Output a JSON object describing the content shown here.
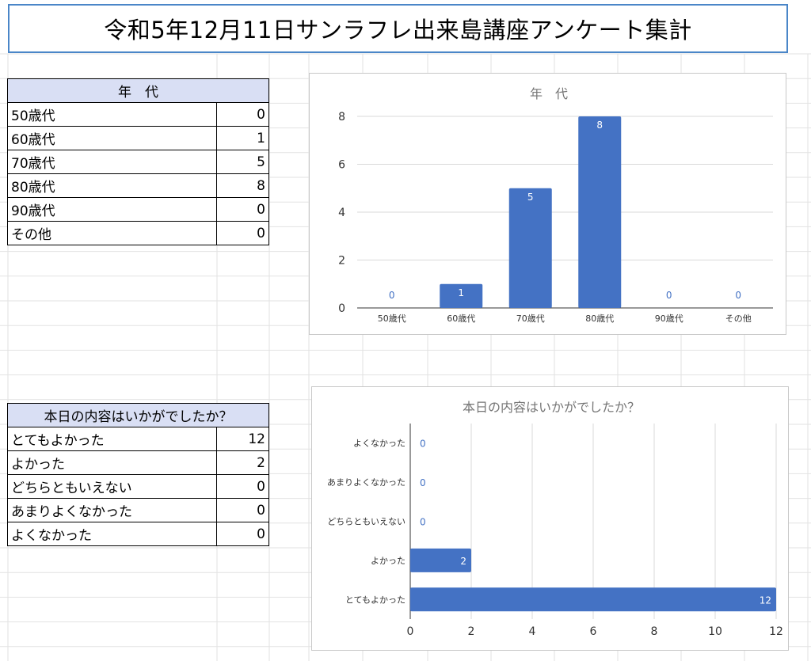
{
  "title": "令和5年12月11日サンラフレ出来島講座アンケート集計",
  "age_table": {
    "header": "年　代",
    "rows": [
      {
        "label": "50歳代",
        "value": "0"
      },
      {
        "label": "60歳代",
        "value": "1"
      },
      {
        "label": "70歳代",
        "value": "5"
      },
      {
        "label": "80歳代",
        "value": "8"
      },
      {
        "label": "90歳代",
        "value": "0"
      },
      {
        "label": "その他",
        "value": "0"
      }
    ]
  },
  "satisfaction_table": {
    "header": "本日の内容はいかがでしたか？",
    "rows": [
      {
        "label": "とてもよかった",
        "value": "12"
      },
      {
        "label": "よかった",
        "value": "2"
      },
      {
        "label": "どちらともいえない",
        "value": "0"
      },
      {
        "label": "あまりよくなかった",
        "value": "0"
      },
      {
        "label": "よくなかった",
        "value": "0"
      }
    ]
  },
  "colors": {
    "bar": "#4472c4",
    "title_border": "#4a86c8",
    "header_fill": "#d9dff4"
  },
  "chart_data": [
    {
      "type": "bar",
      "orientation": "vertical",
      "title": "年　代",
      "categories": [
        "50歳代",
        "60歳代",
        "70歳代",
        "80歳代",
        "90歳代",
        "その他"
      ],
      "values": [
        0,
        1,
        5,
        8,
        0,
        0
      ],
      "ylim": [
        0,
        8
      ],
      "yticks": [
        0,
        2,
        4,
        6,
        8
      ],
      "grid": true,
      "data_labels": true
    },
    {
      "type": "bar",
      "orientation": "horizontal",
      "title": "本日の内容はいかがでしたか？",
      "categories": [
        "よくなかった",
        "あまりよくなかった",
        "どちらともいえない",
        "よかった",
        "とてもよかった"
      ],
      "values": [
        0,
        0,
        0,
        2,
        12
      ],
      "xlim": [
        0,
        12
      ],
      "xticks": [
        0,
        2,
        4,
        6,
        8,
        10,
        12
      ],
      "grid": true,
      "data_labels": true
    }
  ]
}
